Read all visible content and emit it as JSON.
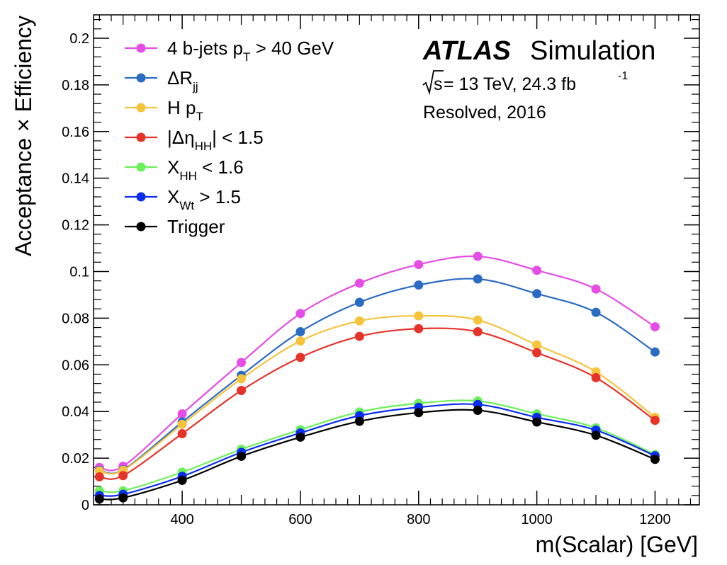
{
  "chart_data": {
    "type": "line",
    "xlabel": "m(Scalar) [GeV]",
    "ylabel": "Acceptance × Efficiency",
    "xlim": [
      250,
      1275
    ],
    "ylim": [
      0,
      0.21
    ],
    "x_ticks": [
      400,
      600,
      800,
      1000,
      1200
    ],
    "y_ticks": [
      0,
      0.02,
      0.04,
      0.06,
      0.08,
      0.1,
      0.12,
      0.14,
      0.16,
      0.18,
      0.2
    ],
    "y_tick_labels": [
      "0",
      "0.02",
      "0.04",
      "0.06",
      "0.08",
      "0.1",
      "0.12",
      "0.14",
      "0.16",
      "0.18",
      "0.2"
    ],
    "x": [
      260,
      300,
      400,
      500,
      600,
      700,
      800,
      900,
      1000,
      1100,
      1200
    ],
    "legend_position": "top-left",
    "series": [
      {
        "legend": [
          "4 b-jets p",
          "T",
          " > 40 GeV"
        ],
        "color": "#e64ce6",
        "values": [
          0.016,
          0.0165,
          0.039,
          0.061,
          0.082,
          0.095,
          0.103,
          0.1065,
          0.1005,
          0.0925,
          0.0763
        ]
      },
      {
        "legend": [
          "ΔR",
          "jj",
          ""
        ],
        "color": "#2a6bc4",
        "values": [
          0.0148,
          0.015,
          0.0355,
          0.0555,
          0.0742,
          0.0868,
          0.0942,
          0.0968,
          0.0905,
          0.0825,
          0.0655
        ]
      },
      {
        "legend": [
          "H p",
          "T",
          ""
        ],
        "color": "#f6c43c",
        "values": [
          0.0145,
          0.0148,
          0.0345,
          0.054,
          0.0702,
          0.0788,
          0.081,
          0.0792,
          0.0685,
          0.057,
          0.0375
        ]
      },
      {
        "legend": [
          "|Δη",
          "HH",
          "| < 1.5"
        ],
        "color": "#e6332a",
        "values": [
          0.012,
          0.0125,
          0.0305,
          0.049,
          0.0632,
          0.0722,
          0.0755,
          0.0742,
          0.0652,
          0.0545,
          0.0362
        ]
      },
      {
        "legend": [
          "X",
          "HH",
          " < 1.6"
        ],
        "color": "#6cf05a",
        "values": [
          0.006,
          0.006,
          0.014,
          0.0238,
          0.0322,
          0.0398,
          0.0435,
          0.0445,
          0.039,
          0.033,
          0.0215
        ]
      },
      {
        "legend": [
          "X",
          "Wt",
          " > 1.5"
        ],
        "color": "#0a2df2",
        "values": [
          0.004,
          0.0045,
          0.0122,
          0.0225,
          0.0308,
          0.0382,
          0.0418,
          0.043,
          0.0375,
          0.032,
          0.021
        ]
      },
      {
        "legend": [
          "Trigger",
          "",
          ""
        ],
        "color": "#000000",
        "values": [
          0.0025,
          0.003,
          0.0105,
          0.0208,
          0.029,
          0.0358,
          0.0395,
          0.0405,
          0.0355,
          0.0298,
          0.0195
        ]
      }
    ],
    "annotations": {
      "experiment": "ATLAS",
      "status": "Simulation",
      "sqrt_s": "s",
      "energy_lumi": " = 13 TeV, 24.3 fb",
      "lumi_exp": "-1",
      "region": "Resolved, 2016"
    }
  }
}
